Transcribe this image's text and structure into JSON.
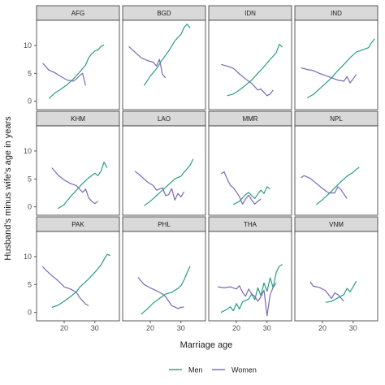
{
  "chart_data": {
    "type": "line",
    "xlabel": "Marriage age",
    "ylabel": "Husband's minus wife's age in years",
    "x_ticks": [
      20,
      30
    ],
    "y_ticks": [
      0,
      5,
      10
    ],
    "xlim": [
      11,
      38
    ],
    "ylim": [
      -1.5,
      14.5
    ],
    "grid": false,
    "legend_position": "bottom",
    "legend": [
      {
        "name": "Men",
        "color": "#2a9d7f"
      },
      {
        "name": "Women",
        "color": "#7b68b5"
      }
    ],
    "panels": [
      {
        "label": "AFG",
        "men": [
          [
            15,
            0.5
          ],
          [
            17,
            1.5
          ],
          [
            19,
            2.2
          ],
          [
            21,
            3.0
          ],
          [
            23,
            4.0
          ],
          [
            25,
            5.2
          ],
          [
            27,
            6.5
          ],
          [
            28,
            7.8
          ],
          [
            29,
            8.5
          ],
          [
            30,
            9.0
          ],
          [
            31,
            9.2
          ],
          [
            32,
            9.8
          ],
          [
            33,
            10.1
          ]
        ],
        "women": [
          [
            13,
            6.8
          ],
          [
            15,
            5.6
          ],
          [
            17,
            5.1
          ],
          [
            19,
            4.4
          ],
          [
            21,
            3.8
          ],
          [
            23,
            3.6
          ],
          [
            24,
            4.0
          ],
          [
            25,
            4.6
          ],
          [
            26,
            5.0
          ],
          [
            27,
            2.8
          ]
        ]
      },
      {
        "label": "BGD",
        "men": [
          [
            18,
            2.8
          ],
          [
            20,
            4.5
          ],
          [
            22,
            5.8
          ],
          [
            24,
            7.5
          ],
          [
            26,
            9.0
          ],
          [
            28,
            10.8
          ],
          [
            30,
            12.0
          ],
          [
            31,
            13.2
          ],
          [
            32,
            13.8
          ],
          [
            33,
            13.1
          ]
        ],
        "women": [
          [
            13,
            9.8
          ],
          [
            15,
            8.8
          ],
          [
            17,
            7.8
          ],
          [
            19,
            7.3
          ],
          [
            21,
            7.0
          ],
          [
            22,
            6.3
          ],
          [
            23,
            7.5
          ],
          [
            24,
            4.8
          ],
          [
            25,
            4.2
          ]
        ]
      },
      {
        "label": "IDN",
        "men": [
          [
            17,
            1.0
          ],
          [
            19,
            1.3
          ],
          [
            21,
            2.0
          ],
          [
            23,
            2.9
          ],
          [
            25,
            3.8
          ],
          [
            27,
            5.0
          ],
          [
            29,
            6.2
          ],
          [
            31,
            7.5
          ],
          [
            33,
            8.7
          ],
          [
            34,
            10.2
          ],
          [
            35,
            9.7
          ]
        ],
        "women": [
          [
            15,
            6.6
          ],
          [
            17,
            6.3
          ],
          [
            19,
            5.9
          ],
          [
            21,
            4.9
          ],
          [
            23,
            4.0
          ],
          [
            25,
            3.2
          ],
          [
            27,
            2.0
          ],
          [
            28,
            2.2
          ],
          [
            29,
            1.6
          ],
          [
            30,
            1.0
          ],
          [
            31,
            1.3
          ],
          [
            32,
            2.0
          ]
        ]
      },
      {
        "label": "IND",
        "men": [
          [
            15,
            0.6
          ],
          [
            17,
            1.2
          ],
          [
            19,
            2.2
          ],
          [
            21,
            3.2
          ],
          [
            23,
            4.2
          ],
          [
            25,
            5.5
          ],
          [
            27,
            6.6
          ],
          [
            29,
            7.8
          ],
          [
            31,
            8.8
          ],
          [
            33,
            9.2
          ],
          [
            35,
            9.6
          ],
          [
            36,
            10.5
          ],
          [
            37,
            11.2
          ]
        ],
        "women": [
          [
            13,
            6.0
          ],
          [
            15,
            5.7
          ],
          [
            17,
            5.5
          ],
          [
            19,
            5.0
          ],
          [
            21,
            4.6
          ],
          [
            23,
            4.2
          ],
          [
            25,
            3.8
          ],
          [
            27,
            3.6
          ],
          [
            28,
            4.4
          ],
          [
            29,
            3.3
          ],
          [
            30,
            4.0
          ],
          [
            31,
            4.8
          ]
        ]
      },
      {
        "label": "KHM",
        "men": [
          [
            18,
            -0.3
          ],
          [
            20,
            0.4
          ],
          [
            22,
            1.8
          ],
          [
            24,
            3.0
          ],
          [
            26,
            4.2
          ],
          [
            28,
            5.2
          ],
          [
            30,
            6.0
          ],
          [
            31,
            5.6
          ],
          [
            32,
            6.4
          ],
          [
            33,
            8.0
          ],
          [
            34,
            7.0
          ]
        ],
        "women": [
          [
            16,
            7.0
          ],
          [
            18,
            5.7
          ],
          [
            20,
            4.8
          ],
          [
            22,
            4.2
          ],
          [
            24,
            3.8
          ],
          [
            26,
            2.6
          ],
          [
            27,
            3.2
          ],
          [
            28,
            1.6
          ],
          [
            29,
            1.0
          ],
          [
            30,
            0.6
          ],
          [
            31,
            1.0
          ]
        ]
      },
      {
        "label": "LAO",
        "men": [
          [
            18,
            0.2
          ],
          [
            20,
            1.0
          ],
          [
            22,
            2.0
          ],
          [
            24,
            3.0
          ],
          [
            26,
            4.0
          ],
          [
            28,
            5.0
          ],
          [
            30,
            5.5
          ],
          [
            31,
            6.2
          ],
          [
            32,
            6.8
          ],
          [
            33,
            7.5
          ],
          [
            34,
            8.6
          ]
        ],
        "women": [
          [
            15,
            6.4
          ],
          [
            17,
            5.5
          ],
          [
            19,
            4.5
          ],
          [
            21,
            3.8
          ],
          [
            22,
            3.0
          ],
          [
            24,
            3.4
          ],
          [
            25,
            2.0
          ],
          [
            26,
            2.2
          ],
          [
            27,
            3.3
          ],
          [
            28,
            1.2
          ],
          [
            29,
            2.4
          ],
          [
            30,
            1.8
          ],
          [
            31,
            2.7
          ]
        ]
      },
      {
        "label": "MMR",
        "men": [
          [
            19,
            0.4
          ],
          [
            21,
            1.0
          ],
          [
            23,
            2.2
          ],
          [
            24,
            2.6
          ],
          [
            25,
            2.0
          ],
          [
            26,
            1.5
          ],
          [
            27,
            2.3
          ],
          [
            28,
            3.0
          ],
          [
            29,
            2.4
          ],
          [
            30,
            3.6
          ],
          [
            31,
            3.2
          ]
        ],
        "women": [
          [
            15,
            5.9
          ],
          [
            16,
            6.3
          ],
          [
            17,
            5.0
          ],
          [
            18,
            3.9
          ],
          [
            19,
            3.4
          ],
          [
            20,
            2.7
          ],
          [
            21,
            1.8
          ],
          [
            22,
            0.5
          ],
          [
            23,
            1.4
          ],
          [
            24,
            2.1
          ],
          [
            25,
            1.2
          ],
          [
            26,
            0.5
          ],
          [
            27,
            1.0
          ],
          [
            28,
            1.4
          ]
        ]
      },
      {
        "label": "NPL",
        "men": [
          [
            18,
            0.4
          ],
          [
            20,
            1.3
          ],
          [
            22,
            2.3
          ],
          [
            24,
            3.4
          ],
          [
            26,
            4.5
          ],
          [
            28,
            5.5
          ],
          [
            30,
            6.2
          ],
          [
            31,
            6.7
          ],
          [
            32,
            7.1
          ]
        ],
        "women": [
          [
            13,
            5.2
          ],
          [
            14,
            5.6
          ],
          [
            16,
            5.1
          ],
          [
            18,
            4.2
          ],
          [
            20,
            3.3
          ],
          [
            22,
            2.5
          ],
          [
            24,
            2.5
          ],
          [
            25,
            3.6
          ],
          [
            26,
            3.1
          ],
          [
            27,
            2.3
          ],
          [
            28,
            1.5
          ]
        ]
      },
      {
        "label": "PAK",
        "men": [
          [
            16,
            0.9
          ],
          [
            18,
            1.3
          ],
          [
            20,
            2.0
          ],
          [
            22,
            2.8
          ],
          [
            24,
            3.7
          ],
          [
            25,
            4.5
          ],
          [
            26,
            5.0
          ],
          [
            28,
            6.0
          ],
          [
            30,
            7.2
          ],
          [
            32,
            8.5
          ],
          [
            33,
            9.5
          ],
          [
            34,
            10.4
          ],
          [
            35,
            10.2
          ]
        ],
        "women": [
          [
            13,
            8.2
          ],
          [
            14,
            7.6
          ],
          [
            16,
            6.6
          ],
          [
            18,
            5.7
          ],
          [
            20,
            4.6
          ],
          [
            22,
            4.2
          ],
          [
            24,
            3.6
          ],
          [
            25,
            2.7
          ],
          [
            27,
            1.5
          ],
          [
            28,
            1.2
          ]
        ]
      },
      {
        "label": "PHL",
        "men": [
          [
            17,
            -0.3
          ],
          [
            19,
            0.6
          ],
          [
            21,
            1.7
          ],
          [
            23,
            2.5
          ],
          [
            25,
            3.3
          ],
          [
            27,
            3.6
          ],
          [
            29,
            4.3
          ],
          [
            30,
            4.8
          ],
          [
            31,
            5.8
          ],
          [
            32,
            7.1
          ],
          [
            33,
            8.3
          ]
        ],
        "women": [
          [
            16,
            6.3
          ],
          [
            18,
            5.0
          ],
          [
            20,
            4.4
          ],
          [
            22,
            3.9
          ],
          [
            24,
            3.3
          ],
          [
            25,
            2.8
          ],
          [
            26,
            2.0
          ],
          [
            27,
            1.2
          ],
          [
            28,
            1.0
          ],
          [
            29,
            0.7
          ],
          [
            30,
            0.9
          ],
          [
            31,
            1.0
          ]
        ]
      },
      {
        "label": "THA",
        "men": [
          [
            15,
            0.0
          ],
          [
            17,
            0.6
          ],
          [
            18,
            1.0
          ],
          [
            19,
            0.3
          ],
          [
            20,
            1.6
          ],
          [
            21,
            0.6
          ],
          [
            22,
            1.9
          ],
          [
            24,
            2.4
          ],
          [
            25,
            3.3
          ],
          [
            26,
            2.3
          ],
          [
            27,
            4.4
          ],
          [
            28,
            3.0
          ],
          [
            29,
            5.3
          ],
          [
            30,
            3.8
          ],
          [
            31,
            6.2
          ],
          [
            32,
            4.4
          ],
          [
            33,
            7.2
          ],
          [
            34,
            8.3
          ],
          [
            35,
            8.6
          ]
        ],
        "women": [
          [
            14,
            4.6
          ],
          [
            16,
            4.4
          ],
          [
            18,
            4.6
          ],
          [
            20,
            4.2
          ],
          [
            21,
            4.8
          ],
          [
            22,
            3.6
          ],
          [
            23,
            2.9
          ],
          [
            24,
            4.2
          ],
          [
            25,
            3.3
          ],
          [
            26,
            2.9
          ],
          [
            27,
            2.0
          ],
          [
            28,
            2.8
          ],
          [
            29,
            4.0
          ],
          [
            30,
            -0.6
          ],
          [
            31,
            3.2
          ],
          [
            32,
            4.5
          ],
          [
            33,
            5.3
          ]
        ]
      },
      {
        "label": "VNM",
        "men": [
          [
            21,
            1.8
          ],
          [
            23,
            2.0
          ],
          [
            25,
            2.6
          ],
          [
            27,
            3.2
          ],
          [
            28,
            4.3
          ],
          [
            29,
            3.7
          ],
          [
            30,
            4.6
          ],
          [
            31,
            5.6
          ]
        ],
        "women": [
          [
            16,
            5.5
          ],
          [
            17,
            4.7
          ],
          [
            19,
            4.5
          ],
          [
            21,
            3.9
          ],
          [
            22,
            3.2
          ],
          [
            23,
            2.5
          ],
          [
            24,
            3.5
          ],
          [
            25,
            3.2
          ],
          [
            26,
            2.6
          ],
          [
            27,
            2.0
          ]
        ]
      }
    ]
  }
}
